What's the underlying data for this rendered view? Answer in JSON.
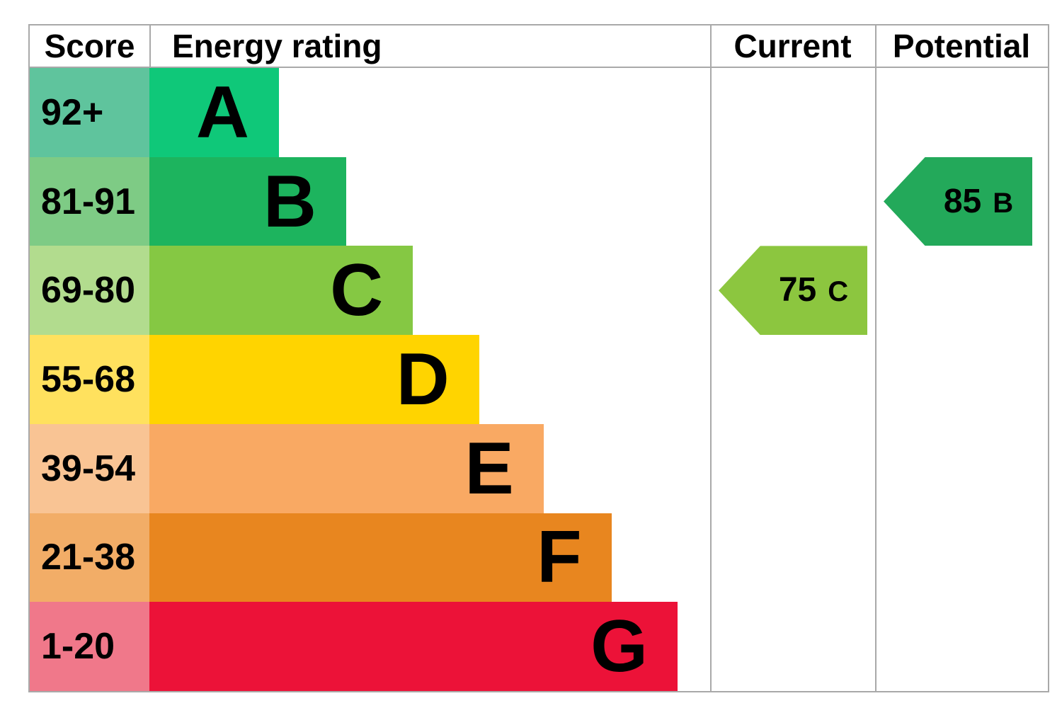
{
  "header": {
    "score": "Score",
    "energy_rating": "Energy rating",
    "current": "Current",
    "potential": "Potential"
  },
  "chart_data": {
    "type": "bar",
    "subtype": "epc-energy-efficiency-rating",
    "orientation": "horizontal",
    "columns": [
      "Score",
      "Energy rating",
      "Current",
      "Potential"
    ],
    "bands": [
      {
        "letter": "A",
        "score": "92+",
        "bar_color": "#0fc879",
        "score_bg": "#5fc49d",
        "width_pct": 23.1
      },
      {
        "letter": "B",
        "score": "81-91",
        "bar_color": "#1db45e",
        "score_bg": "#7ecb85",
        "width_pct": 35.1
      },
      {
        "letter": "C",
        "score": "69-80",
        "bar_color": "#85c843",
        "score_bg": "#b2dc8e",
        "width_pct": 47.0
      },
      {
        "letter": "D",
        "score": "55-68",
        "bar_color": "#ffd400",
        "score_bg": "#ffe15e",
        "width_pct": 58.8
      },
      {
        "letter": "E",
        "score": "39-54",
        "bar_color": "#f9a963",
        "score_bg": "#f9c494",
        "width_pct": 70.3
      },
      {
        "letter": "F",
        "score": "21-38",
        "bar_color": "#e8861f",
        "score_bg": "#f2ad67",
        "width_pct": 82.4
      },
      {
        "letter": "G",
        "score": "1-20",
        "bar_color": "#ec1238",
        "score_bg": "#f0788a",
        "width_pct": 94.2
      }
    ],
    "markers": [
      {
        "column": "current",
        "value": "75",
        "letter": "C",
        "band_index": 2,
        "color": "#8cc63f"
      },
      {
        "column": "potential",
        "value": "85",
        "letter": "B",
        "band_index": 1,
        "color": "#23a95a"
      }
    ],
    "grid_color": "#a9a9a9",
    "legend_position": "none",
    "grid": false
  }
}
